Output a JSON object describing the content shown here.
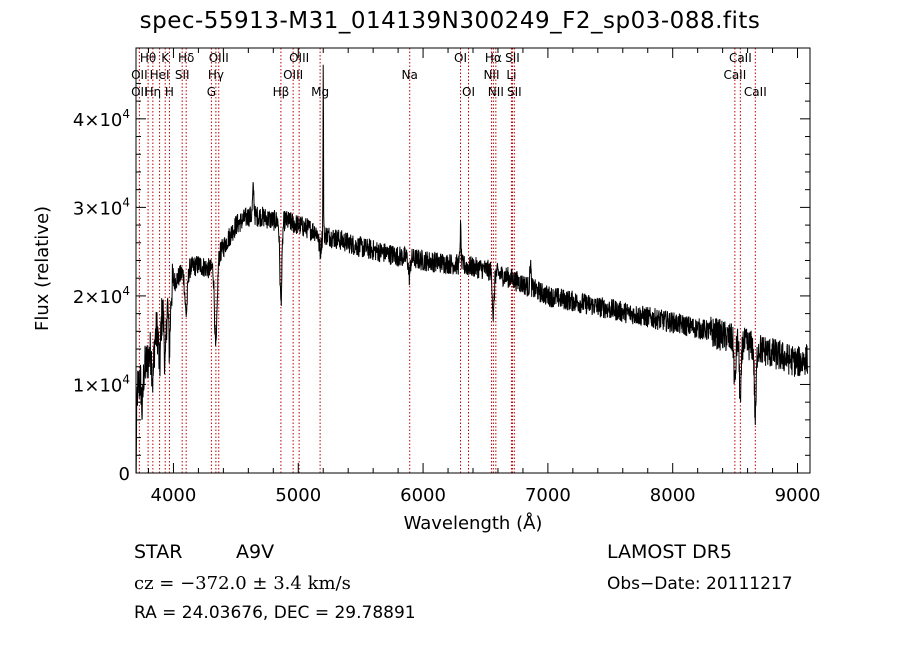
{
  "title": "spec-55913-M31_014139N300249_F2_sp03-088.fits",
  "info": {
    "class_label": "STAR",
    "subclass_label": "A9V",
    "survey": "LAMOST  DR5",
    "cz": "cz = −372.0 ± 3.4 km/s",
    "obs_date": "Obs−Date: 20111217",
    "radec": "RA =  24.03676, DEC =  29.78891"
  },
  "chart_data": {
    "type": "line",
    "xlabel": "Wavelength (Å)",
    "ylabel": "Flux (relative)",
    "xlim": [
      3700,
      9100
    ],
    "ylim": [
      0,
      48000
    ],
    "x_ticks": [
      {
        "value": 4000,
        "label": "4000"
      },
      {
        "value": 5000,
        "label": "5000"
      },
      {
        "value": 6000,
        "label": "6000"
      },
      {
        "value": 7000,
        "label": "7000"
      },
      {
        "value": 8000,
        "label": "8000"
      },
      {
        "value": 9000,
        "label": "9000"
      }
    ],
    "y_ticks": [
      {
        "value": 0,
        "label": "0"
      },
      {
        "value": 10000,
        "label": "1×10",
        "exp": "4"
      },
      {
        "value": 20000,
        "label": "2×10",
        "exp": "4"
      },
      {
        "value": 30000,
        "label": "3×10",
        "exp": "4"
      },
      {
        "value": 40000,
        "label": "4×10",
        "exp": "4"
      }
    ],
    "line_color": "#000000",
    "marker_color": "#c00000",
    "markers": [
      {
        "name": "Hθ",
        "wavelength": 3797,
        "row": 0
      },
      {
        "name": "OII",
        "wavelength": 3727,
        "row": 1
      },
      {
        "name": "OII",
        "wavelength": 3727,
        "row": 2
      },
      {
        "name": "Hη",
        "wavelength": 3835,
        "row": 2
      },
      {
        "name": "K",
        "wavelength": 3934,
        "row": 0
      },
      {
        "name": "HeI",
        "wavelength": 3889,
        "row": 1
      },
      {
        "name": "H",
        "wavelength": 3968,
        "row": 2
      },
      {
        "name": "Hδ",
        "wavelength": 4102,
        "row": 0
      },
      {
        "name": "SII",
        "wavelength": 4070,
        "row": 1
      },
      {
        "name": "OIII",
        "wavelength": 4363,
        "row": 0
      },
      {
        "name": "Hγ",
        "wavelength": 4340,
        "row": 1
      },
      {
        "name": "G",
        "wavelength": 4304,
        "row": 2
      },
      {
        "name": "Hβ",
        "wavelength": 4861,
        "row": 2
      },
      {
        "name": "OIII",
        "wavelength": 5007,
        "row": 0
      },
      {
        "name": "OIII",
        "wavelength": 4959,
        "row": 1
      },
      {
        "name": "Mg",
        "wavelength": 5175,
        "row": 2
      },
      {
        "name": "Na",
        "wavelength": 5893,
        "row": 1
      },
      {
        "name": "OI",
        "wavelength": 6300,
        "row": 0
      },
      {
        "name": "OI",
        "wavelength": 6364,
        "row": 2
      },
      {
        "name": "Hα",
        "wavelength": 6563,
        "row": 0
      },
      {
        "name": "NII",
        "wavelength": 6548,
        "row": 1
      },
      {
        "name": "NII",
        "wavelength": 6583,
        "row": 2
      },
      {
        "name": "SII",
        "wavelength": 6716,
        "row": 0
      },
      {
        "name": "Li",
        "wavelength": 6708,
        "row": 1
      },
      {
        "name": "SII",
        "wavelength": 6731,
        "row": 2
      },
      {
        "name": "CaII",
        "wavelength": 8542,
        "row": 0
      },
      {
        "name": "CaII",
        "wavelength": 8498,
        "row": 1
      },
      {
        "name": "CaII",
        "wavelength": 8662,
        "row": 2
      }
    ],
    "spectrum": {
      "continuum_x": [
        3700,
        3800,
        3900,
        4000,
        4100,
        4200,
        4300,
        4400,
        4500,
        4600,
        4700,
        4800,
        4900,
        5000,
        5200,
        5500,
        5800,
        6000,
        6300,
        6500,
        6700,
        7000,
        7500,
        8000,
        8300,
        8500,
        8700,
        9000,
        9100
      ],
      "continuum_y": [
        9000,
        13000,
        17500,
        21500,
        23000,
        23500,
        23000,
        25500,
        28000,
        29000,
        29000,
        28500,
        28500,
        28000,
        27000,
        25500,
        24500,
        24000,
        23500,
        23000,
        22000,
        20000,
        18500,
        17000,
        16000,
        15000,
        14000,
        12500,
        13000
      ],
      "absorption_lines": [
        {
          "x": 3700,
          "depth": 9000,
          "width": 6
        },
        {
          "x": 3750,
          "depth": 4000,
          "width": 8
        },
        {
          "x": 3835,
          "depth": 4000,
          "width": 10
        },
        {
          "x": 3889,
          "depth": 5000,
          "width": 10
        },
        {
          "x": 3934,
          "depth": 7000,
          "width": 10
        },
        {
          "x": 3968,
          "depth": 6000,
          "width": 10
        },
        {
          "x": 4102,
          "depth": 5000,
          "width": 14
        },
        {
          "x": 4340,
          "depth": 10000,
          "width": 14
        },
        {
          "x": 4861,
          "depth": 9000,
          "width": 12
        },
        {
          "x": 5175,
          "depth": 2000,
          "width": 14
        },
        {
          "x": 5890,
          "depth": 2000,
          "width": 10
        },
        {
          "x": 6563,
          "depth": 5000,
          "width": 10
        },
        {
          "x": 8498,
          "depth": 5000,
          "width": 10
        },
        {
          "x": 8542,
          "depth": 7000,
          "width": 10
        },
        {
          "x": 8662,
          "depth": 8000,
          "width": 10
        }
      ],
      "emission_lines": [
        {
          "x": 4640,
          "height": 3000,
          "width": 8
        },
        {
          "x": 5200,
          "height": 19000,
          "width": 3
        },
        {
          "x": 6300,
          "height": 4000,
          "width": 6
        },
        {
          "x": 6860,
          "height": 3000,
          "width": 6
        }
      ],
      "noise_amplitude": 1200
    }
  }
}
